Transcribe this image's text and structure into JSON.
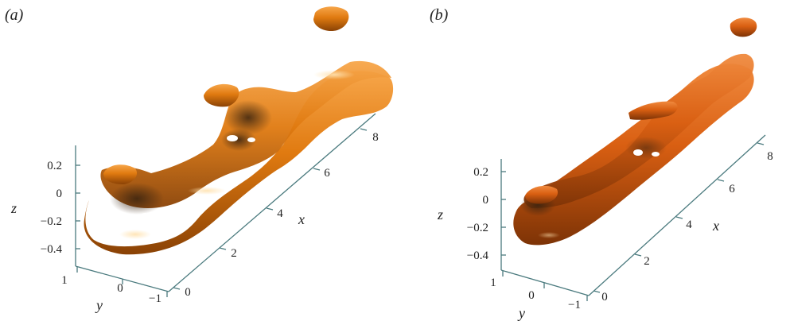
{
  "panels": [
    {
      "label": "(a)",
      "z_axis": {
        "label": "z",
        "ticks": [
          "0.2",
          "0",
          "−0.2",
          "−0.4"
        ]
      },
      "y_axis": {
        "label": "y",
        "ticks": [
          "1",
          "0",
          "−1"
        ]
      },
      "x_axis": {
        "label": "x",
        "ticks": [
          "0",
          "2",
          "4",
          "6",
          "8"
        ]
      },
      "surface_color": "#e07a10"
    },
    {
      "label": "(b)",
      "z_axis": {
        "label": "z",
        "ticks": [
          "0.2",
          "0",
          "−0.2",
          "−0.4"
        ]
      },
      "y_axis": {
        "label": "y",
        "ticks": [
          "1",
          "0",
          "−1"
        ]
      },
      "x_axis": {
        "label": "x",
        "ticks": [
          "0",
          "2",
          "4",
          "6",
          "8"
        ]
      },
      "surface_color": "#d95f12"
    }
  ],
  "colors": {
    "axis": "#4a7a7e",
    "label": "#222222"
  }
}
